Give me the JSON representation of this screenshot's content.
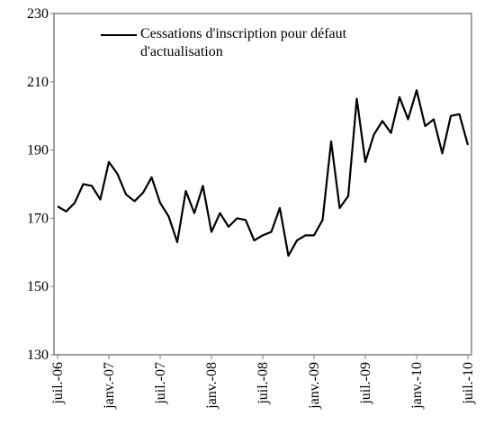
{
  "chart_data": {
    "type": "line",
    "categories": [
      "juil.-06",
      null,
      null,
      null,
      null,
      null,
      "janv.-07",
      null,
      null,
      null,
      null,
      null,
      "juil.-07",
      null,
      null,
      null,
      null,
      null,
      "janv.-08",
      null,
      null,
      null,
      null,
      null,
      "juil.-08",
      null,
      null,
      null,
      null,
      null,
      "janv.-09",
      null,
      null,
      null,
      null,
      null,
      "juil.-09",
      null,
      null,
      null,
      null,
      null,
      "janv.-10",
      null,
      null,
      null,
      null,
      null,
      "juil.-10"
    ],
    "series": [
      {
        "name": "Cessations d'inscription pour défaut d'actualisation",
        "color": "#000000",
        "values": [
          173.5,
          172,
          174.5,
          180,
          179.5,
          175.5,
          186.5,
          183,
          177,
          175,
          177.5,
          182,
          174.5,
          170.5,
          163,
          178,
          171.5,
          179.5,
          166,
          171.5,
          167.5,
          170,
          169.5,
          163.5,
          165,
          166,
          173,
          159,
          163.5,
          165,
          165,
          169.5,
          192.5,
          173,
          176.5,
          205,
          186.5,
          194.5,
          198.5,
          195,
          205.5,
          199,
          207.5,
          197,
          199,
          189,
          200,
          200.5,
          191.5
        ]
      }
    ],
    "ylim": [
      130,
      230
    ],
    "yticks": [
      130,
      150,
      170,
      190,
      210,
      230
    ],
    "grid": false
  }
}
